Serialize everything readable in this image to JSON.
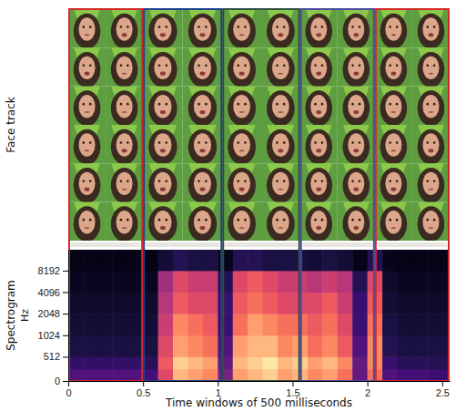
{
  "chart_data": {
    "type": "heatmap",
    "face_track_label": "Face track",
    "ylabel": "Spectrogram",
    "yunit": "Hz",
    "xlabel": "Time windows of 500 milliseconds",
    "xlim": [
      0,
      2.55
    ],
    "xticks": [
      0,
      0.5,
      1,
      1.5,
      2,
      2.5
    ],
    "ylim": [
      0,
      16000
    ],
    "yticks": [
      0,
      512,
      1024,
      2048,
      4096,
      8192
    ],
    "windows": [
      {
        "start": 0,
        "end": 0.5,
        "color": "#d62728"
      },
      {
        "start": 0.5,
        "end": 1.03,
        "color": "#1f3f8f"
      },
      {
        "start": 1.03,
        "end": 1.55,
        "color": "#2f4f3f"
      },
      {
        "start": 1.55,
        "end": 2.05,
        "color": "#4a4aa0"
      },
      {
        "start": 2.05,
        "end": 2.55,
        "color": "#d62728"
      }
    ],
    "spectrogram": {
      "time_bins": [
        0,
        0.1,
        0.2,
        0.3,
        0.4,
        0.5,
        0.6,
        0.7,
        0.8,
        0.9,
        1,
        1.1,
        1.2,
        1.3,
        1.4,
        1.5,
        1.6,
        1.7,
        1.8,
        1.9,
        2,
        2.1,
        2.2,
        2.3,
        2.4,
        2.5,
        2.6
      ],
      "freq_bins": [
        0,
        256,
        512,
        1024,
        2048,
        4096,
        8192,
        16000
      ],
      "cells": [
        [
          0.25,
          0.25,
          0.25,
          0.25,
          0.25,
          0.22,
          0.6,
          0.85,
          0.8,
          0.75,
          0.35,
          0.8,
          0.85,
          0.9,
          0.8,
          0.85,
          0.75,
          0.8,
          0.7,
          0.3,
          0.7,
          0.25,
          0.22,
          0.22,
          0.2,
          0.2
        ],
        [
          0.18,
          0.18,
          0.18,
          0.18,
          0.18,
          0.16,
          0.65,
          0.9,
          0.85,
          0.8,
          0.3,
          0.85,
          0.9,
          0.95,
          0.85,
          0.9,
          0.8,
          0.85,
          0.75,
          0.3,
          0.75,
          0.2,
          0.16,
          0.16,
          0.15,
          0.15
        ],
        [
          0.12,
          0.12,
          0.12,
          0.12,
          0.12,
          0.12,
          0.6,
          0.8,
          0.75,
          0.7,
          0.25,
          0.8,
          0.85,
          0.85,
          0.75,
          0.8,
          0.7,
          0.75,
          0.65,
          0.25,
          0.75,
          0.15,
          0.12,
          0.12,
          0.12,
          0.12
        ],
        [
          0.1,
          0.1,
          0.1,
          0.1,
          0.1,
          0.1,
          0.55,
          0.75,
          0.7,
          0.65,
          0.2,
          0.7,
          0.8,
          0.75,
          0.7,
          0.7,
          0.65,
          0.7,
          0.6,
          0.2,
          0.7,
          0.12,
          0.1,
          0.1,
          0.1,
          0.1
        ],
        [
          0.08,
          0.08,
          0.08,
          0.08,
          0.08,
          0.08,
          0.5,
          0.65,
          0.6,
          0.6,
          0.2,
          0.65,
          0.7,
          0.65,
          0.6,
          0.6,
          0.6,
          0.65,
          0.55,
          0.2,
          0.65,
          0.1,
          0.08,
          0.08,
          0.08,
          0.08
        ],
        [
          0.06,
          0.06,
          0.06,
          0.06,
          0.06,
          0.06,
          0.45,
          0.6,
          0.55,
          0.55,
          0.15,
          0.6,
          0.65,
          0.6,
          0.55,
          0.55,
          0.5,
          0.55,
          0.5,
          0.15,
          0.6,
          0.08,
          0.06,
          0.06,
          0.06,
          0.06
        ],
        [
          0.04,
          0.04,
          0.04,
          0.04,
          0.04,
          0.04,
          0.1,
          0.15,
          0.12,
          0.12,
          0.05,
          0.15,
          0.15,
          0.12,
          0.12,
          0.12,
          0.1,
          0.12,
          0.1,
          0.05,
          0.15,
          0.05,
          0.04,
          0.04,
          0.04,
          0.04
        ]
      ]
    }
  }
}
